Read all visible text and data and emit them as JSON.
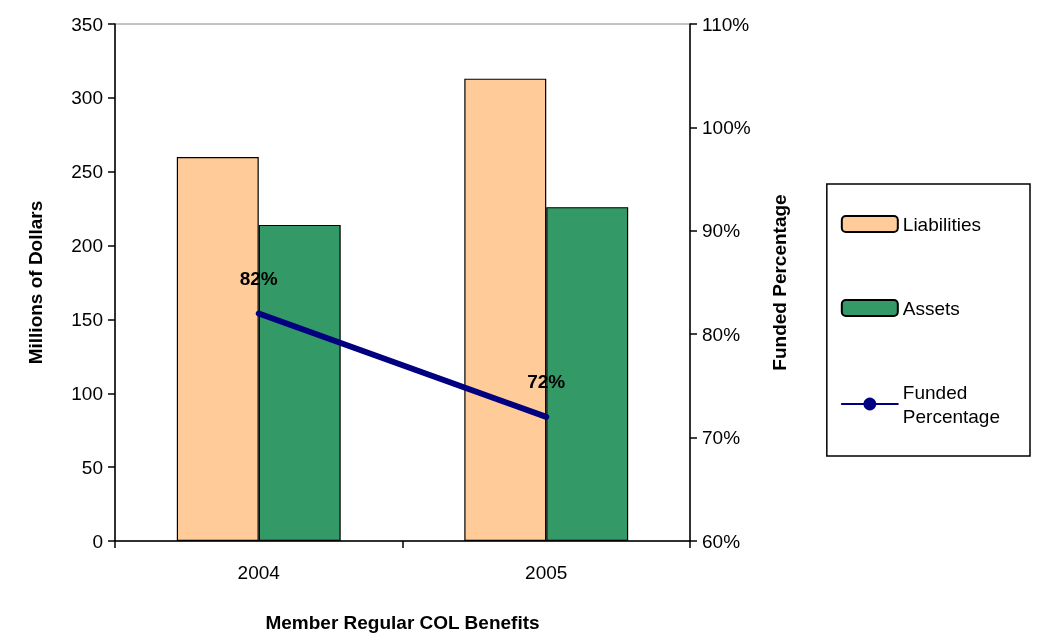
{
  "chart_data": {
    "type": "bar",
    "xlabel": "Member Regular COL Benefits",
    "ylabel": "Millions of Dollars",
    "y2label": "Funded Percentage",
    "categories": [
      "2004",
      "2005"
    ],
    "series": [
      {
        "name": "Liabilities",
        "color": "#ffcc99",
        "values": [
          260,
          313
        ]
      },
      {
        "name": "Assets",
        "color": "#339966",
        "values": [
          214,
          226
        ]
      },
      {
        "name": "Funded Percentage",
        "type": "line",
        "axis": "y2",
        "color": "#000080",
        "values": [
          82,
          72
        ],
        "value_labels": [
          "82%",
          "72%"
        ]
      }
    ],
    "ylim": [
      0,
      350
    ],
    "yticks": [
      0,
      50,
      100,
      150,
      200,
      250,
      300,
      350
    ],
    "y2lim": [
      60,
      110
    ],
    "y2ticks": [
      {
        "value": 60,
        "label": "60%"
      },
      {
        "value": 70,
        "label": "70%"
      },
      {
        "value": 80,
        "label": "80%"
      },
      {
        "value": 90,
        "label": "90%"
      },
      {
        "value": 100,
        "label": "100%"
      },
      {
        "value": 110,
        "label": "110%"
      }
    ],
    "legend": "right",
    "grid": false,
    "marker": "none",
    "line_style": "solid"
  }
}
